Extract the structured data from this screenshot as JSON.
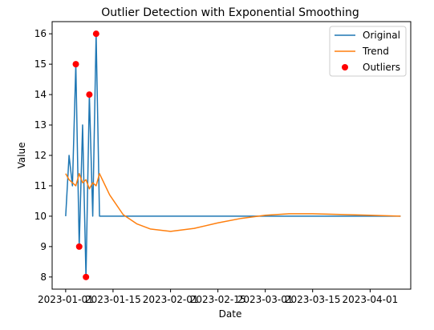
{
  "chart_data": {
    "type": "line",
    "title": "Outlier Detection with Exponential Smoothing",
    "xlabel": "Date",
    "ylabel": "Value",
    "x_range": [
      "2022-12-28",
      "2023-04-13"
    ],
    "ylim": [
      7.6,
      16.4
    ],
    "x_ticks": [
      "2023-01-01",
      "2023-01-15",
      "2023-02-01",
      "2023-02-15",
      "2023-03-01",
      "2023-03-15",
      "2023-04-01"
    ],
    "y_ticks": [
      8,
      9,
      10,
      11,
      12,
      13,
      14,
      15,
      16
    ],
    "grid": false,
    "legend_position": "top-right",
    "colors": {
      "original": "#1f77b4",
      "trend": "#ff7f0e",
      "outliers": "#ff0000"
    },
    "series": [
      {
        "name": "Original",
        "kind": "line",
        "points": [
          [
            "2023-01-01",
            10
          ],
          [
            "2023-01-02",
            12
          ],
          [
            "2023-01-03",
            11
          ],
          [
            "2023-01-04",
            15
          ],
          [
            "2023-01-05",
            9
          ],
          [
            "2023-01-06",
            13
          ],
          [
            "2023-01-07",
            8
          ],
          [
            "2023-01-08",
            14
          ],
          [
            "2023-01-09",
            10
          ],
          [
            "2023-01-10",
            16
          ],
          [
            "2023-01-11",
            10
          ],
          [
            "2023-04-10",
            10
          ]
        ]
      },
      {
        "name": "Trend",
        "kind": "line",
        "points": [
          [
            "2023-01-01",
            11.4
          ],
          [
            "2023-01-02",
            11.2
          ],
          [
            "2023-01-03",
            11.1
          ],
          [
            "2023-01-04",
            11.0
          ],
          [
            "2023-01-05",
            11.4
          ],
          [
            "2023-01-06",
            11.1
          ],
          [
            "2023-01-07",
            11.2
          ],
          [
            "2023-01-08",
            10.9
          ],
          [
            "2023-01-09",
            11.1
          ],
          [
            "2023-01-10",
            11.0
          ],
          [
            "2023-01-11",
            11.4
          ],
          [
            "2023-01-14",
            10.7
          ],
          [
            "2023-01-18",
            10.05
          ],
          [
            "2023-01-22",
            9.75
          ],
          [
            "2023-01-26",
            9.58
          ],
          [
            "2023-02-01",
            9.5
          ],
          [
            "2023-02-08",
            9.6
          ],
          [
            "2023-02-15",
            9.78
          ],
          [
            "2023-02-22",
            9.93
          ],
          [
            "2023-03-01",
            10.03
          ],
          [
            "2023-03-08",
            10.08
          ],
          [
            "2023-03-15",
            10.08
          ],
          [
            "2023-03-22",
            10.06
          ],
          [
            "2023-04-01",
            10.03
          ],
          [
            "2023-04-10",
            10.0
          ]
        ]
      },
      {
        "name": "Outliers",
        "kind": "scatter",
        "points": [
          [
            "2023-01-04",
            15
          ],
          [
            "2023-01-05",
            9
          ],
          [
            "2023-01-07",
            8
          ],
          [
            "2023-01-08",
            14
          ],
          [
            "2023-01-10",
            16
          ]
        ]
      }
    ]
  }
}
